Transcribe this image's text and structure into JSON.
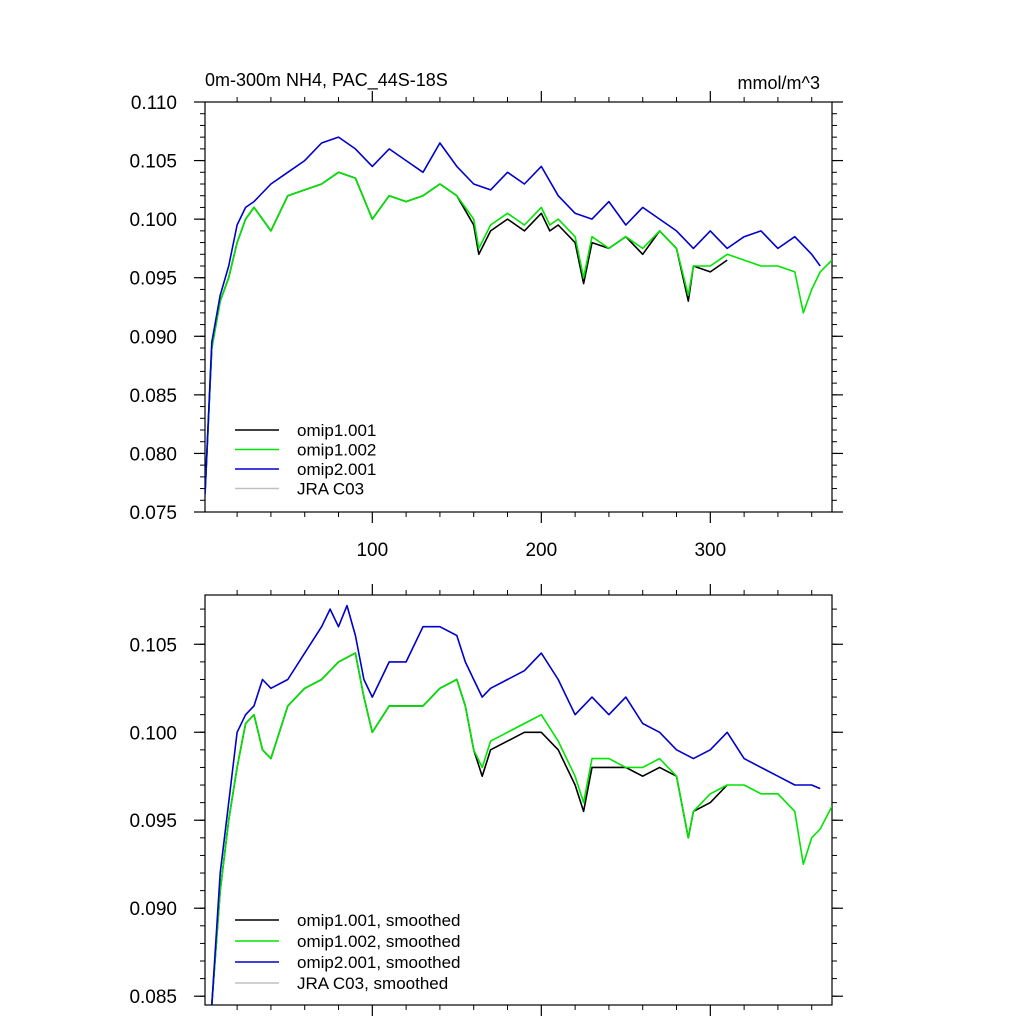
{
  "chart_data": [
    {
      "type": "line",
      "title": "0m-300m NH4, PAC_44S-18S",
      "units": "mmol/m^3",
      "xlim": [
        1,
        372
      ],
      "ylim": [
        0.075,
        0.11
      ],
      "xticks": [
        100,
        200,
        300
      ],
      "xtick_labels": [
        "100",
        "200",
        "300"
      ],
      "yticks": [
        0.075,
        0.08,
        0.085,
        0.09,
        0.095,
        0.1,
        0.105,
        0.11
      ],
      "ytick_labels": [
        "0.075",
        "0.080",
        "0.085",
        "0.090",
        "0.095",
        "0.100",
        "0.105",
        "0.110"
      ],
      "legend_position": "lower-left",
      "series": [
        {
          "name": "omip1.001",
          "color": "#000000",
          "x": [
            1,
            5,
            10,
            15,
            20,
            25,
            30,
            40,
            50,
            60,
            70,
            80,
            90,
            100,
            110,
            120,
            130,
            140,
            150,
            160,
            163,
            170,
            180,
            190,
            200,
            205,
            210,
            220,
            225,
            230,
            240,
            250,
            260,
            270,
            280,
            287,
            290,
            300,
            310
          ],
          "y": [
            0.0765,
            0.089,
            0.093,
            0.095,
            0.098,
            0.1,
            0.101,
            0.099,
            0.102,
            0.1025,
            0.103,
            0.104,
            0.1035,
            0.1,
            0.102,
            0.1015,
            0.102,
            0.103,
            0.102,
            0.0995,
            0.097,
            0.099,
            0.1,
            0.099,
            0.1005,
            0.099,
            0.0995,
            0.098,
            0.0945,
            0.098,
            0.0975,
            0.0985,
            0.097,
            0.099,
            0.0975,
            0.093,
            0.096,
            0.0955,
            0.0965
          ]
        },
        {
          "name": "omip1.002",
          "color": "#00e600",
          "x": [
            1,
            5,
            10,
            15,
            20,
            25,
            30,
            40,
            50,
            60,
            70,
            80,
            90,
            100,
            110,
            120,
            130,
            140,
            150,
            160,
            163,
            170,
            180,
            190,
            200,
            205,
            210,
            220,
            225,
            230,
            240,
            250,
            260,
            270,
            280,
            287,
            290,
            300,
            310,
            320,
            330,
            340,
            350,
            355,
            360,
            365,
            372
          ],
          "y": [
            0.0765,
            0.089,
            0.093,
            0.095,
            0.098,
            0.1,
            0.101,
            0.099,
            0.102,
            0.1025,
            0.103,
            0.104,
            0.1035,
            0.1,
            0.102,
            0.1015,
            0.102,
            0.103,
            0.102,
            0.1,
            0.0975,
            0.0995,
            0.1005,
            0.0995,
            0.101,
            0.0995,
            0.1,
            0.0985,
            0.095,
            0.0985,
            0.0975,
            0.0985,
            0.0975,
            0.099,
            0.0975,
            0.0935,
            0.096,
            0.096,
            0.097,
            0.0965,
            0.096,
            0.096,
            0.0955,
            0.092,
            0.094,
            0.0955,
            0.0965
          ]
        },
        {
          "name": "omip2.001",
          "color": "#0000cc",
          "x": [
            1,
            5,
            10,
            15,
            20,
            25,
            30,
            40,
            50,
            60,
            70,
            80,
            90,
            100,
            110,
            120,
            130,
            140,
            150,
            160,
            170,
            180,
            190,
            200,
            210,
            220,
            230,
            240,
            250,
            260,
            270,
            280,
            290,
            300,
            310,
            320,
            330,
            340,
            350,
            360,
            365
          ],
          "y": [
            0.0765,
            0.0895,
            0.0935,
            0.096,
            0.0995,
            0.101,
            0.1015,
            0.103,
            0.104,
            0.105,
            0.1065,
            0.107,
            0.106,
            0.1045,
            0.106,
            0.105,
            0.104,
            0.1065,
            0.1045,
            0.103,
            0.1025,
            0.104,
            0.103,
            0.1045,
            0.102,
            0.1005,
            0.1,
            0.1015,
            0.0995,
            0.101,
            0.1,
            0.099,
            0.0975,
            0.099,
            0.0975,
            0.0985,
            0.099,
            0.0975,
            0.0985,
            0.097,
            0.096
          ]
        },
        {
          "name": "JRA C03",
          "color": "#c0c0c0",
          "x": [],
          "y": []
        }
      ]
    },
    {
      "type": "line",
      "title": "",
      "units": "",
      "xlim": [
        1,
        372
      ],
      "ylim": [
        0.0845,
        0.1078
      ],
      "xticks": [
        100,
        200,
        300
      ],
      "xtick_labels": [
        "",
        "",
        ""
      ],
      "yticks": [
        0.085,
        0.09,
        0.095,
        0.1,
        0.105
      ],
      "ytick_labels": [
        "0.085",
        "0.090",
        "0.095",
        "0.100",
        "0.105"
      ],
      "legend_position": "lower-left",
      "series": [
        {
          "name": "omip1.001, smoothed",
          "color": "#000000",
          "x": [
            5,
            10,
            15,
            20,
            25,
            30,
            35,
            40,
            50,
            60,
            70,
            80,
            90,
            95,
            100,
            110,
            120,
            130,
            140,
            150,
            155,
            160,
            165,
            170,
            180,
            190,
            200,
            210,
            220,
            225,
            230,
            240,
            250,
            260,
            270,
            280,
            287,
            290,
            300,
            310
          ],
          "y": [
            0.0845,
            0.091,
            0.095,
            0.098,
            0.1005,
            0.101,
            0.099,
            0.0985,
            0.1015,
            0.1025,
            0.103,
            0.104,
            0.1045,
            0.102,
            0.1,
            0.1015,
            0.1015,
            0.1015,
            0.1025,
            0.103,
            0.1015,
            0.099,
            0.0975,
            0.099,
            0.0995,
            0.1,
            0.1,
            0.099,
            0.097,
            0.0955,
            0.098,
            0.098,
            0.098,
            0.0975,
            0.098,
            0.0975,
            0.094,
            0.0955,
            0.096,
            0.097
          ]
        },
        {
          "name": "omip1.002, smoothed",
          "color": "#00e600",
          "x": [
            5,
            10,
            15,
            20,
            25,
            30,
            35,
            40,
            50,
            60,
            70,
            80,
            90,
            95,
            100,
            110,
            120,
            130,
            140,
            150,
            155,
            160,
            165,
            170,
            180,
            190,
            200,
            210,
            220,
            225,
            230,
            240,
            250,
            260,
            270,
            280,
            287,
            290,
            300,
            310,
            320,
            330,
            340,
            350,
            355,
            360,
            365,
            372
          ],
          "y": [
            0.0845,
            0.091,
            0.095,
            0.098,
            0.1005,
            0.101,
            0.099,
            0.0985,
            0.1015,
            0.1025,
            0.103,
            0.104,
            0.1045,
            0.102,
            0.1,
            0.1015,
            0.1015,
            0.1015,
            0.1025,
            0.103,
            0.1015,
            0.099,
            0.098,
            0.0995,
            0.1,
            0.1005,
            0.101,
            0.0995,
            0.0975,
            0.096,
            0.0985,
            0.0985,
            0.098,
            0.098,
            0.0985,
            0.0975,
            0.094,
            0.0955,
            0.0965,
            0.097,
            0.097,
            0.0965,
            0.0965,
            0.0955,
            0.0925,
            0.094,
            0.0945,
            0.0958
          ]
        },
        {
          "name": "omip2.001, smoothed",
          "color": "#0000cc",
          "x": [
            5,
            10,
            15,
            20,
            25,
            30,
            35,
            40,
            50,
            60,
            70,
            75,
            80,
            85,
            90,
            95,
            100,
            110,
            120,
            130,
            140,
            150,
            155,
            160,
            165,
            170,
            180,
            190,
            200,
            210,
            220,
            230,
            240,
            250,
            260,
            270,
            280,
            290,
            300,
            310,
            320,
            330,
            340,
            350,
            360,
            365
          ],
          "y": [
            0.0845,
            0.092,
            0.096,
            0.1,
            0.101,
            0.1015,
            0.103,
            0.1025,
            0.103,
            0.1045,
            0.106,
            0.107,
            0.106,
            0.1072,
            0.1055,
            0.103,
            0.102,
            0.104,
            0.104,
            0.106,
            0.106,
            0.1055,
            0.104,
            0.103,
            0.102,
            0.1025,
            0.103,
            0.1035,
            0.1045,
            0.103,
            0.101,
            0.102,
            0.101,
            0.102,
            0.1005,
            0.1,
            0.099,
            0.0985,
            0.099,
            0.1,
            0.0985,
            0.098,
            0.0975,
            0.097,
            0.097,
            0.0968
          ]
        },
        {
          "name": "JRA C03, smoothed",
          "color": "#c0c0c0",
          "x": [],
          "y": []
        }
      ]
    }
  ]
}
